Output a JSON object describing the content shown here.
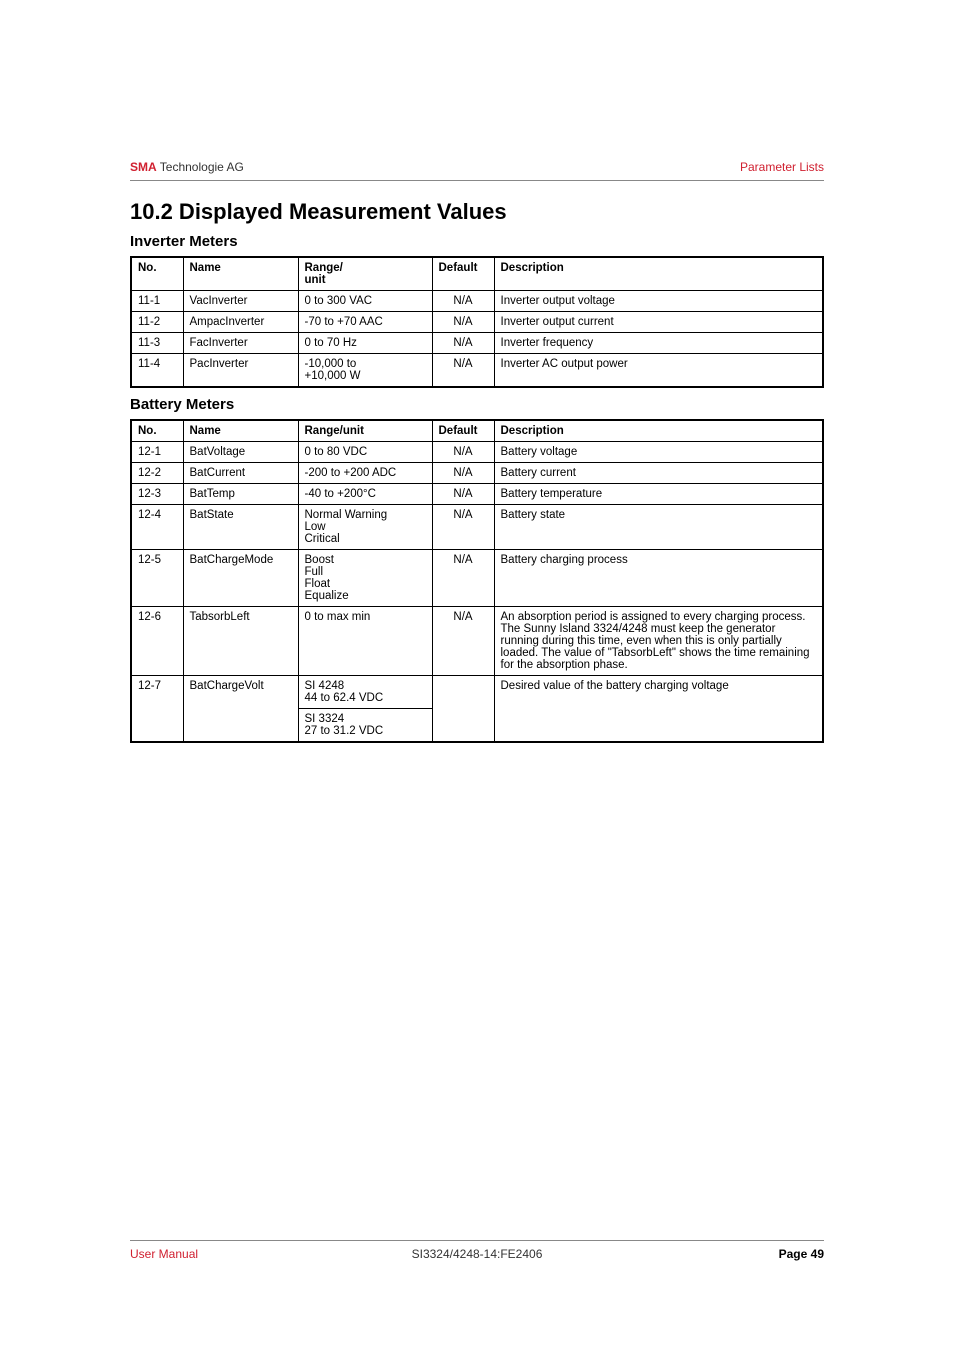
{
  "header": {
    "brand_bold": "SMA",
    "brand_rest": " Technologie AG",
    "right": "Parameter Lists"
  },
  "section": {
    "title": "10.2  Displayed Measurement Values"
  },
  "inverter": {
    "title": "Inverter Meters",
    "columns": {
      "no": "No.",
      "name": "Name",
      "range": "Range/\nunit",
      "default": "Default",
      "description": "Description"
    },
    "rows": [
      {
        "no": "11-1",
        "name": "VacInverter",
        "range": "0 to 300 VAC",
        "default": "N/A",
        "desc": "Inverter output voltage"
      },
      {
        "no": "11-2",
        "name": "AmpacInverter",
        "range": "-70 to +70 AAC",
        "default": "N/A",
        "desc": "Inverter output current"
      },
      {
        "no": "11-3",
        "name": "FacInverter",
        "range": "0 to 70 Hz",
        "default": "N/A",
        "desc": "Inverter frequency"
      },
      {
        "no": "11-4",
        "name": "PacInverter",
        "range": "-10,000 to\n+10,000 W",
        "default": "N/A",
        "desc": "Inverter AC output power"
      }
    ]
  },
  "battery": {
    "title": "Battery Meters",
    "columns": {
      "no": "No.",
      "name": "Name",
      "range": "Range/unit",
      "default": "Default",
      "description": "Description"
    },
    "rows": [
      {
        "no": "12-1",
        "name": "BatVoltage",
        "range": "0 to 80 VDC",
        "default": "N/A",
        "desc": "Battery voltage"
      },
      {
        "no": "12-2",
        "name": "BatCurrent",
        "range": "-200 to +200 ADC",
        "default": "N/A",
        "desc": "Battery current"
      },
      {
        "no": "12-3",
        "name": "BatTemp",
        "range": "-40 to +200°C",
        "default": "N/A",
        "desc": "Battery temperature"
      },
      {
        "no": "12-4",
        "name": "BatState",
        "range": "Normal Warning\nLow\nCritical",
        "default": "N/A",
        "desc": "Battery state"
      },
      {
        "no": "12-5",
        "name": "BatChargeMode",
        "range": "Boost\nFull\nFloat\nEqualize",
        "default": "N/A",
        "desc": "Battery charging process"
      },
      {
        "no": "12-6",
        "name": "TabsorbLeft",
        "range": "0 to max min",
        "default": "N/A",
        "desc": "An absorption period is assigned to every charging process. The Sunny Island 3324/4248 must keep the generator running during this time, even when this is only partially loaded. The value of \"TabsorbLeft\" shows the time remaining for the absorption phase.",
        "desc_justify": true
      },
      {
        "no": "12-7",
        "name": "BatChargeVolt",
        "range": "SI 4248\n44 to 62.4 VDC",
        "range2": "SI 3324\n27 to 31.2 VDC",
        "default": "",
        "desc": "Desired value of the battery charging voltage",
        "desc_justify": true
      }
    ]
  },
  "footer": {
    "left": "User Manual",
    "center": "SI3324/4248-14:FE2406",
    "right_label": "Page ",
    "right_page": "49"
  },
  "colors": {
    "accent": "#d02030",
    "text": "#000000",
    "muted": "#333333",
    "rule": "#888888",
    "border": "#000000",
    "background": "#ffffff"
  }
}
